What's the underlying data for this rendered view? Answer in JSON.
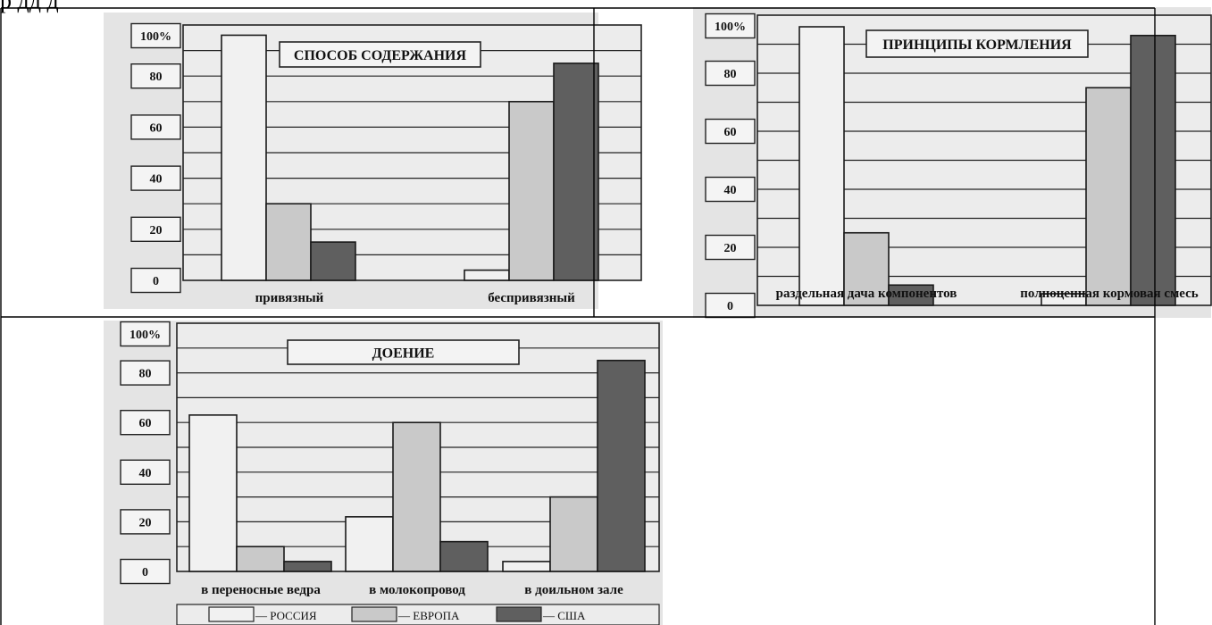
{
  "document": {
    "clipped_text": "р дд д"
  },
  "colors": {
    "russia": "#f1f1f1",
    "europe": "#c9c9c9",
    "usa": "#5f5f5f",
    "panel_bg": "#e4e4e4",
    "plot_bg": "#ececec"
  },
  "legend": {
    "items": [
      {
        "label": "— РОССИЯ",
        "color": "#f1f1f1"
      },
      {
        "label": "— ЕВРОПА",
        "color": "#c9c9c9"
      },
      {
        "label": "— США",
        "color": "#5f5f5f"
      }
    ]
  },
  "chart_data": [
    {
      "type": "bar",
      "title": "СПОСОБ СОДЕРЖАНИЯ",
      "categories": [
        "привязный",
        "беспривязный"
      ],
      "series": [
        {
          "name": "РОССИЯ",
          "values": [
            96,
            4
          ]
        },
        {
          "name": "ЕВРОПА",
          "values": [
            30,
            70
          ]
        },
        {
          "name": "США",
          "values": [
            15,
            85
          ]
        }
      ],
      "ylim": [
        0,
        100
      ],
      "yticks": [
        "0",
        "20",
        "40",
        "60",
        "80",
        "100%"
      ],
      "grid": true
    },
    {
      "type": "bar",
      "title": "ПРИНЦИПЫ КОРМЛЕНИЯ",
      "categories": [
        "раздельная дача компонентов",
        "полноценная кормовая смесь"
      ],
      "series": [
        {
          "name": "РОССИЯ",
          "values": [
            96,
            4
          ]
        },
        {
          "name": "ЕВРОПА",
          "values": [
            25,
            75
          ]
        },
        {
          "name": "США",
          "values": [
            7,
            93
          ]
        }
      ],
      "ylim": [
        0,
        100
      ],
      "yticks": [
        "0",
        "20",
        "40",
        "60",
        "80",
        "100%"
      ],
      "grid": true
    },
    {
      "type": "bar",
      "title": "ДОЕНИЕ",
      "categories": [
        "в переносные ведра",
        "в молокопровод",
        "в доильном зале"
      ],
      "series": [
        {
          "name": "РОССИЯ",
          "values": [
            63,
            22,
            4
          ]
        },
        {
          "name": "ЕВРОПА",
          "values": [
            10,
            60,
            30
          ]
        },
        {
          "name": "США",
          "values": [
            4,
            12,
            85
          ]
        }
      ],
      "ylim": [
        0,
        100
      ],
      "yticks": [
        "0",
        "20",
        "40",
        "60",
        "80",
        "100%"
      ],
      "grid": true
    }
  ]
}
